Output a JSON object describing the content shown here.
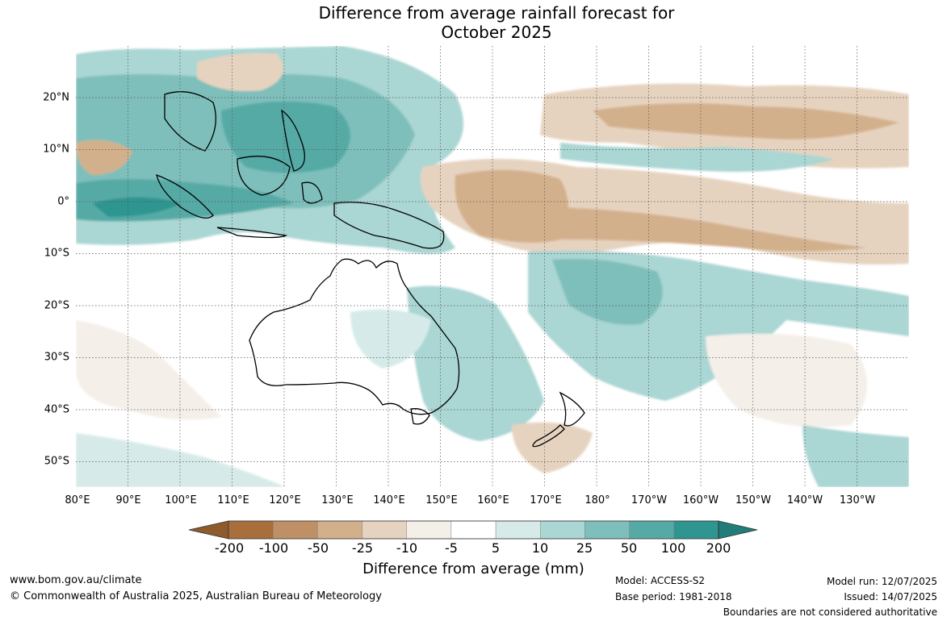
{
  "map": {
    "title_line1": "Difference from average rainfall forecast for",
    "title_line2": "October 2025",
    "lon_labels": [
      "80°E",
      "90°E",
      "100°E",
      "110°E",
      "120°E",
      "130°E",
      "140°E",
      "150°E",
      "160°E",
      "170°E",
      "180°",
      "170°W",
      "160°W",
      "150°W",
      "140°W",
      "130°W"
    ],
    "lat_labels": [
      "20°N",
      "10°N",
      "0°",
      "10°S",
      "20°S",
      "30°S",
      "40°S",
      "50°S"
    ],
    "extent": {
      "lon_min": 80,
      "lon_max": 240,
      "lat_min": -55,
      "lat_max": 30
    }
  },
  "legend": {
    "title": "Difference from average (mm)",
    "tick_labels": [
      "-200",
      "-100",
      "-50",
      "-25",
      "-10",
      "-5",
      "5",
      "10",
      "25",
      "50",
      "100",
      "200"
    ],
    "colors": [
      "#a86e3c",
      "#bf9065",
      "#d3b08c",
      "#e6d3bf",
      "#f4efe8",
      "#ffffff",
      "#d6ebe9",
      "#aad6d3",
      "#7ebfbb",
      "#56aaa6",
      "#2e9590"
    ],
    "extend_low_color": "#8f5a2c",
    "extend_high_color": "#227d78"
  },
  "footer": {
    "website": "www.bom.gov.au/climate",
    "copyright": "© Commonwealth of Australia 2025, Australian Bureau of Meteorology",
    "model": "Model: ACCESS-S2",
    "base_period": "Base period: 1981-2018",
    "model_run": "Model run: 12/07/2025",
    "issued": "Issued: 14/07/2025",
    "disclaimer": "Boundaries are not considered authoritative"
  }
}
